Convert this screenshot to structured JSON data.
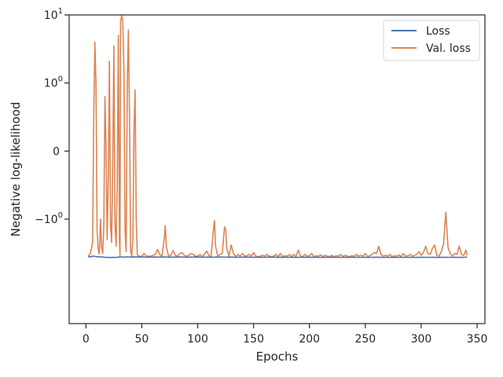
{
  "chart_data": {
    "type": "line",
    "title": "",
    "xlabel": "Epochs",
    "ylabel": "Negative log-likelihood",
    "xlim": [
      -15,
      357
    ],
    "x_ticks": [
      0,
      50,
      100,
      150,
      200,
      250,
      300,
      350
    ],
    "y_scale": "symlog",
    "y_ticks": [
      {
        "value": 10,
        "base": "10",
        "exp": "1"
      },
      {
        "value": 1,
        "base": "10",
        "exp": "0"
      },
      {
        "value": 0,
        "label": "0"
      },
      {
        "value": -1,
        "base": "−10",
        "exp": "0"
      }
    ],
    "grid": false,
    "legend_position": "top-right",
    "series": [
      {
        "name": "Loss",
        "color": "#4c72b0",
        "points": [
          [
            2,
            -3.55
          ],
          [
            4,
            -3.6
          ],
          [
            6,
            -3.49
          ],
          [
            8,
            -3.52
          ],
          [
            10,
            -3.58
          ],
          [
            12,
            -3.56
          ],
          [
            14,
            -3.6
          ],
          [
            16,
            -3.61
          ],
          [
            18,
            -3.66
          ],
          [
            20,
            -3.64
          ],
          [
            22,
            -3.66
          ],
          [
            24,
            -3.64
          ],
          [
            26,
            -3.65
          ],
          [
            28,
            -3.64
          ],
          [
            30,
            -3.6
          ],
          [
            32,
            -3.57
          ],
          [
            34,
            -3.63
          ],
          [
            36,
            -3.58
          ],
          [
            38,
            -3.6
          ],
          [
            40,
            -3.61
          ],
          [
            42,
            -3.59
          ],
          [
            44,
            -3.6
          ],
          [
            46,
            -3.59
          ],
          [
            50,
            -3.6
          ],
          [
            55,
            -3.62
          ],
          [
            60,
            -3.6
          ],
          [
            65,
            -3.61
          ],
          [
            70,
            -3.6
          ],
          [
            75,
            -3.62
          ],
          [
            80,
            -3.61
          ],
          [
            85,
            -3.6
          ],
          [
            90,
            -3.62
          ],
          [
            95,
            -3.61
          ],
          [
            100,
            -3.6
          ],
          [
            105,
            -3.62
          ],
          [
            110,
            -3.61
          ],
          [
            115,
            -3.62
          ],
          [
            120,
            -3.6
          ],
          [
            125,
            -3.62
          ],
          [
            130,
            -3.61
          ],
          [
            135,
            -3.63
          ],
          [
            140,
            -3.62
          ],
          [
            145,
            -3.61
          ],
          [
            150,
            -3.63
          ],
          [
            155,
            -3.62
          ],
          [
            160,
            -3.63
          ],
          [
            165,
            -3.61
          ],
          [
            170,
            -3.63
          ],
          [
            175,
            -3.62
          ],
          [
            180,
            -3.63
          ],
          [
            185,
            -3.62
          ],
          [
            190,
            -3.64
          ],
          [
            195,
            -3.62
          ],
          [
            200,
            -3.63
          ],
          [
            205,
            -3.62
          ],
          [
            210,
            -3.64
          ],
          [
            215,
            -3.63
          ],
          [
            220,
            -3.62
          ],
          [
            225,
            -3.64
          ],
          [
            230,
            -3.63
          ],
          [
            235,
            -3.64
          ],
          [
            240,
            -3.62
          ],
          [
            245,
            -3.64
          ],
          [
            250,
            -3.63
          ],
          [
            255,
            -3.64
          ],
          [
            260,
            -3.62
          ],
          [
            265,
            -3.64
          ],
          [
            270,
            -3.63
          ],
          [
            275,
            -3.65
          ],
          [
            280,
            -3.63
          ],
          [
            285,
            -3.64
          ],
          [
            290,
            -3.63
          ],
          [
            295,
            -3.65
          ],
          [
            300,
            -3.63
          ],
          [
            305,
            -3.64
          ],
          [
            310,
            -3.63
          ],
          [
            315,
            -3.65
          ],
          [
            320,
            -3.63
          ],
          [
            325,
            -3.64
          ],
          [
            330,
            -3.63
          ],
          [
            335,
            -3.65
          ],
          [
            338,
            -3.64
          ],
          [
            341,
            -3.6
          ]
        ]
      },
      {
        "name": "Val. loss",
        "color": "#dd8452",
        "points": [
          [
            2,
            -3.5
          ],
          [
            4,
            -3.2
          ],
          [
            6,
            -2.2
          ],
          [
            7,
            0.5
          ],
          [
            8,
            4
          ],
          [
            9,
            1.0
          ],
          [
            10,
            -1.5
          ],
          [
            11,
            -2.8
          ],
          [
            12,
            -3.25
          ],
          [
            13,
            -1.0
          ],
          [
            14,
            -2.5
          ],
          [
            15,
            -3.2
          ],
          [
            16,
            -1.3
          ],
          [
            17,
            0.8
          ],
          [
            18,
            0.05
          ],
          [
            19,
            -2.0
          ],
          [
            20,
            -0.4
          ],
          [
            21,
            2.1
          ],
          [
            22,
            -1.2
          ],
          [
            23,
            -2.2
          ],
          [
            24,
            -0.2
          ],
          [
            25,
            3.5
          ],
          [
            26,
            -1.2
          ],
          [
            27,
            -2.5
          ],
          [
            28,
            -0.5
          ],
          [
            29,
            5
          ],
          [
            30,
            -2.0
          ],
          [
            30.5,
            -3.4
          ],
          [
            31,
            8
          ],
          [
            32,
            9.8
          ],
          [
            33,
            8
          ],
          [
            34,
            1.5
          ],
          [
            35,
            -1.5
          ],
          [
            36,
            -3.0
          ],
          [
            37,
            1.0
          ],
          [
            38,
            6
          ],
          [
            39,
            0.5
          ],
          [
            40,
            -3.0
          ],
          [
            41,
            -3.5
          ],
          [
            42,
            -2.0
          ],
          [
            43,
            0.3
          ],
          [
            44,
            0.9
          ],
          [
            45,
            -1.0
          ],
          [
            46,
            -3.3
          ],
          [
            48,
            -3.55
          ],
          [
            50,
            -3.5
          ],
          [
            52,
            -3.2
          ],
          [
            54,
            -3.5
          ],
          [
            56,
            -3.5
          ],
          [
            58,
            -3.5
          ],
          [
            60,
            -3.4
          ],
          [
            62,
            -3.3
          ],
          [
            64,
            -2.8
          ],
          [
            66,
            -3.3
          ],
          [
            68,
            -3.5
          ],
          [
            70,
            -2.0
          ],
          [
            71,
            -1.25
          ],
          [
            72,
            -2.6
          ],
          [
            74,
            -3.5
          ],
          [
            76,
            -3.4
          ],
          [
            78,
            -2.9
          ],
          [
            80,
            -3.4
          ],
          [
            82,
            -3.5
          ],
          [
            84,
            -3.2
          ],
          [
            86,
            -3.1
          ],
          [
            88,
            -3.4
          ],
          [
            90,
            -3.5
          ],
          [
            92,
            -3.4
          ],
          [
            94,
            -3.2
          ],
          [
            96,
            -3.3
          ],
          [
            98,
            -3.5
          ],
          [
            100,
            -3.5
          ],
          [
            102,
            -3.3
          ],
          [
            104,
            -3.55
          ],
          [
            106,
            -3.3
          ],
          [
            108,
            -2.95
          ],
          [
            110,
            -3.4
          ],
          [
            112,
            -3.55
          ],
          [
            114,
            -1.5
          ],
          [
            115,
            -1.05
          ],
          [
            116,
            -2.5
          ],
          [
            118,
            -3.5
          ],
          [
            120,
            -3.3
          ],
          [
            122,
            -3.2
          ],
          [
            124,
            -1.3
          ],
          [
            125,
            -1.4
          ],
          [
            126,
            -2.7
          ],
          [
            128,
            -3.5
          ],
          [
            130,
            -2.4
          ],
          [
            132,
            -3.2
          ],
          [
            134,
            -3.55
          ],
          [
            136,
            -3.3
          ],
          [
            138,
            -3.5
          ],
          [
            140,
            -3.2
          ],
          [
            142,
            -3.5
          ],
          [
            144,
            -3.45
          ],
          [
            146,
            -3.3
          ],
          [
            148,
            -3.5
          ],
          [
            150,
            -3.1
          ],
          [
            152,
            -3.5
          ],
          [
            154,
            -3.55
          ],
          [
            156,
            -3.5
          ],
          [
            158,
            -3.4
          ],
          [
            160,
            -3.5
          ],
          [
            162,
            -3.3
          ],
          [
            164,
            -3.5
          ],
          [
            166,
            -3.55
          ],
          [
            168,
            -3.5
          ],
          [
            170,
            -3.3
          ],
          [
            172,
            -3.55
          ],
          [
            174,
            -3.2
          ],
          [
            176,
            -3.55
          ],
          [
            178,
            -3.45
          ],
          [
            180,
            -3.5
          ],
          [
            182,
            -3.3
          ],
          [
            184,
            -3.55
          ],
          [
            186,
            -3.3
          ],
          [
            188,
            -3.55
          ],
          [
            190,
            -2.85
          ],
          [
            192,
            -3.5
          ],
          [
            194,
            -3.55
          ],
          [
            196,
            -3.3
          ],
          [
            198,
            -3.5
          ],
          [
            200,
            -3.45
          ],
          [
            202,
            -3.2
          ],
          [
            204,
            -3.55
          ],
          [
            206,
            -3.45
          ],
          [
            208,
            -3.5
          ],
          [
            210,
            -3.35
          ],
          [
            212,
            -3.55
          ],
          [
            214,
            -3.4
          ],
          [
            216,
            -3.5
          ],
          [
            218,
            -3.55
          ],
          [
            220,
            -3.4
          ],
          [
            222,
            -3.55
          ],
          [
            224,
            -3.45
          ],
          [
            226,
            -3.5
          ],
          [
            228,
            -3.3
          ],
          [
            230,
            -3.55
          ],
          [
            232,
            -3.4
          ],
          [
            234,
            -3.5
          ],
          [
            236,
            -3.55
          ],
          [
            238,
            -3.45
          ],
          [
            240,
            -3.5
          ],
          [
            242,
            -3.3
          ],
          [
            244,
            -3.5
          ],
          [
            246,
            -3.4
          ],
          [
            248,
            -3.5
          ],
          [
            250,
            -3.2
          ],
          [
            252,
            -3.55
          ],
          [
            254,
            -3.45
          ],
          [
            256,
            -3.3
          ],
          [
            258,
            -3.1
          ],
          [
            260,
            -3.2
          ],
          [
            262,
            -2.5
          ],
          [
            264,
            -3.3
          ],
          [
            266,
            -3.5
          ],
          [
            268,
            -3.4
          ],
          [
            270,
            -3.5
          ],
          [
            272,
            -3.3
          ],
          [
            274,
            -3.55
          ],
          [
            276,
            -3.45
          ],
          [
            278,
            -3.5
          ],
          [
            280,
            -3.35
          ],
          [
            282,
            -3.55
          ],
          [
            284,
            -3.2
          ],
          [
            286,
            -3.5
          ],
          [
            288,
            -3.45
          ],
          [
            290,
            -3.3
          ],
          [
            292,
            -3.5
          ],
          [
            294,
            -3.4
          ],
          [
            296,
            -3.3
          ],
          [
            298,
            -3.0
          ],
          [
            300,
            -3.4
          ],
          [
            302,
            -3.1
          ],
          [
            304,
            -2.5
          ],
          [
            306,
            -3.2
          ],
          [
            308,
            -3.3
          ],
          [
            310,
            -2.7
          ],
          [
            312,
            -2.4
          ],
          [
            314,
            -3.4
          ],
          [
            316,
            -3.5
          ],
          [
            318,
            -3.0
          ],
          [
            320,
            -2.3
          ],
          [
            322,
            -0.9
          ],
          [
            324,
            -2.6
          ],
          [
            326,
            -3.2
          ],
          [
            328,
            -3.5
          ],
          [
            330,
            -3.2
          ],
          [
            332,
            -3.3
          ],
          [
            334,
            -2.5
          ],
          [
            336,
            -3.3
          ],
          [
            338,
            -3.4
          ],
          [
            340,
            -2.85
          ],
          [
            341,
            -3.4
          ]
        ]
      }
    ]
  }
}
